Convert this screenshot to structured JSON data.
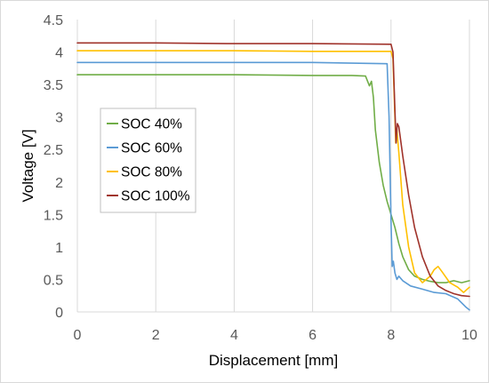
{
  "chart_data": {
    "type": "line",
    "title": "",
    "xlabel": "Displacement [mm]",
    "ylabel": "Voltage [V]",
    "xlim": [
      0,
      10
    ],
    "ylim": [
      0,
      4.5
    ],
    "xticks": [
      "0",
      "2",
      "4",
      "6",
      "8",
      "10"
    ],
    "yticks": [
      "0",
      "0.5",
      "1",
      "1.5",
      "2",
      "2.5",
      "3",
      "3.5",
      "4",
      "4.5"
    ],
    "grid": "vertical",
    "legend_position": "left",
    "series": [
      {
        "name": "SOC 40%",
        "color": "#70AD47",
        "x": [
          0,
          2,
          4,
          6,
          7.0,
          7.35,
          7.45,
          7.5,
          7.55,
          7.6,
          7.7,
          7.8,
          7.9,
          8.0,
          8.1,
          8.2,
          8.3,
          8.45,
          8.6,
          8.8,
          9.0,
          9.2,
          9.4,
          9.6,
          9.8,
          10.0
        ],
        "y": [
          3.65,
          3.65,
          3.65,
          3.64,
          3.64,
          3.63,
          3.48,
          3.55,
          3.3,
          2.8,
          2.3,
          1.95,
          1.7,
          1.5,
          1.3,
          1.05,
          0.85,
          0.65,
          0.55,
          0.5,
          0.47,
          0.45,
          0.45,
          0.48,
          0.45,
          0.48
        ]
      },
      {
        "name": "SOC 60%",
        "color": "#5B9BD5",
        "x": [
          0,
          2,
          4,
          6,
          7.9,
          7.95,
          8.0,
          8.03,
          8.06,
          8.1,
          8.15,
          8.2,
          8.3,
          8.5,
          8.8,
          9.1,
          9.4,
          9.7,
          9.9,
          10.0
        ],
        "y": [
          3.84,
          3.84,
          3.84,
          3.84,
          3.82,
          3.0,
          1.4,
          0.7,
          0.78,
          0.6,
          0.5,
          0.55,
          0.48,
          0.4,
          0.35,
          0.3,
          0.28,
          0.2,
          0.08,
          0.03
        ]
      },
      {
        "name": "SOC 80%",
        "color": "#FFC000",
        "x": [
          0,
          2,
          4,
          6,
          8.0,
          8.05,
          8.1,
          8.12,
          8.15,
          8.2,
          8.3,
          8.45,
          8.6,
          8.8,
          9.0,
          9.1,
          9.2,
          9.3,
          9.5,
          9.7,
          9.85,
          10.0
        ],
        "y": [
          4.02,
          4.02,
          4.02,
          4.01,
          4.01,
          3.9,
          3.0,
          2.6,
          2.8,
          2.45,
          1.65,
          1.0,
          0.6,
          0.45,
          0.55,
          0.65,
          0.7,
          0.62,
          0.45,
          0.38,
          0.3,
          0.38
        ]
      },
      {
        "name": "SOC 100%",
        "color": "#A0332B",
        "x": [
          0,
          2,
          4,
          6,
          8.0,
          8.05,
          8.1,
          8.13,
          8.16,
          8.2,
          8.3,
          8.45,
          8.6,
          8.8,
          9.0,
          9.2,
          9.4,
          9.6,
          9.8,
          10.0
        ],
        "y": [
          4.14,
          4.14,
          4.13,
          4.13,
          4.12,
          4.0,
          3.1,
          2.6,
          2.9,
          2.85,
          2.4,
          1.8,
          1.3,
          0.85,
          0.55,
          0.4,
          0.33,
          0.28,
          0.25,
          0.24
        ]
      }
    ]
  }
}
